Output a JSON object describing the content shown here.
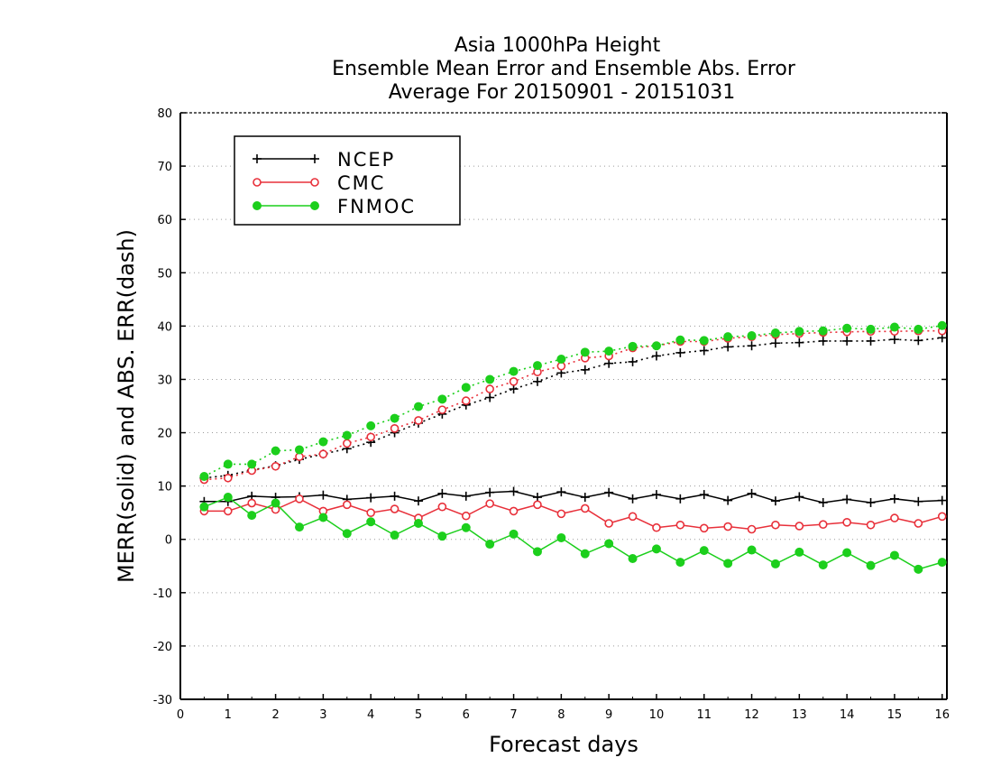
{
  "chart_data": {
    "type": "line",
    "title_lines": [
      "Asia 1000hPa Height",
      "Ensemble Mean Error and Ensemble Abs. Error",
      "Average For 20150901 - 20151031"
    ],
    "xlabel": "Forecast days",
    "ylabel": "MERR(solid) and ABS. ERR(dash)",
    "xlim": [
      0,
      16.1
    ],
    "ylim": [
      -30,
      80
    ],
    "x_ticks": [
      0,
      1,
      2,
      3,
      4,
      5,
      6,
      7,
      8,
      9,
      10,
      11,
      12,
      13,
      14,
      15,
      16
    ],
    "y_ticks": [
      -30,
      -20,
      -10,
      0,
      10,
      20,
      30,
      40,
      50,
      60,
      70,
      80
    ],
    "grid": "horizontal dotted",
    "legend_position": "top-left",
    "x": [
      0.5,
      1,
      1.5,
      2,
      2.5,
      3,
      3.5,
      4,
      4.5,
      5,
      5.5,
      6,
      6.5,
      7,
      7.5,
      8,
      8.5,
      9,
      9.5,
      10,
      10.5,
      11,
      11.5,
      12,
      12.5,
      13,
      13.5,
      14,
      14.5,
      15,
      15.5,
      16
    ],
    "series": [
      {
        "name": "NCEP",
        "color": "#000000",
        "marker": "plus",
        "merr": [
          7.1,
          7.1,
          8.1,
          7.9,
          8.0,
          8.3,
          7.5,
          7.8,
          8.1,
          7.2,
          8.6,
          8.1,
          8.8,
          9.0,
          7.9,
          8.9,
          7.9,
          8.8,
          7.6,
          8.4,
          7.6,
          8.4,
          7.3,
          8.6,
          7.2,
          8.0,
          6.9,
          7.5,
          6.9,
          7.6,
          7.1,
          7.3
        ],
        "abs_err": [
          11.5,
          12.0,
          13.0,
          13.8,
          15.0,
          16.0,
          17.0,
          18.2,
          20.0,
          21.8,
          23.5,
          25.2,
          26.6,
          28.2,
          29.6,
          31.2,
          31.8,
          33.0,
          33.3,
          34.4,
          35.0,
          35.4,
          36.1,
          36.3,
          36.8,
          36.9,
          37.2,
          37.2,
          37.2,
          37.5,
          37.3,
          37.8
        ]
      },
      {
        "name": "CMC",
        "color": "#e8303a",
        "marker": "open-circle",
        "merr": [
          5.3,
          5.3,
          6.8,
          5.6,
          7.6,
          5.3,
          6.5,
          5.0,
          5.7,
          4.0,
          6.1,
          4.4,
          6.7,
          5.3,
          6.5,
          4.8,
          5.8,
          3.0,
          4.3,
          2.2,
          2.7,
          2.1,
          2.4,
          1.9,
          2.7,
          2.5,
          2.8,
          3.2,
          2.7,
          4.0,
          3.0,
          4.3
        ],
        "abs_err": [
          11.2,
          11.5,
          12.9,
          13.7,
          15.5,
          16.0,
          18.0,
          19.2,
          20.8,
          22.3,
          24.3,
          26.0,
          28.2,
          29.6,
          31.4,
          32.5,
          34.0,
          34.4,
          35.9,
          36.3,
          37.1,
          37.1,
          37.7,
          38.0,
          38.4,
          38.6,
          38.8,
          38.9,
          39.0,
          39.0,
          39.1,
          39.1
        ]
      },
      {
        "name": "FNMOC",
        "color": "#1ccf1c",
        "marker": "filled-circle",
        "merr": [
          6.1,
          7.9,
          4.5,
          6.8,
          2.3,
          4.1,
          1.1,
          3.3,
          0.8,
          3.0,
          0.6,
          2.2,
          -0.9,
          1.0,
          -2.3,
          0.3,
          -2.7,
          -0.8,
          -3.6,
          -1.8,
          -4.3,
          -2.1,
          -4.5,
          -2.0,
          -4.6,
          -2.4,
          -4.8,
          -2.5,
          -4.9,
          -3.0,
          -5.6,
          -4.3
        ],
        "abs_err": [
          11.8,
          14.1,
          14.1,
          16.6,
          16.8,
          18.3,
          19.5,
          21.3,
          22.7,
          24.9,
          26.3,
          28.5,
          30.0,
          31.5,
          32.6,
          33.8,
          35.1,
          35.3,
          36.2,
          36.3,
          37.4,
          37.3,
          38.0,
          38.2,
          38.7,
          39.0,
          39.1,
          39.6,
          39.4,
          39.8,
          39.4,
          40.1
        ]
      }
    ]
  }
}
